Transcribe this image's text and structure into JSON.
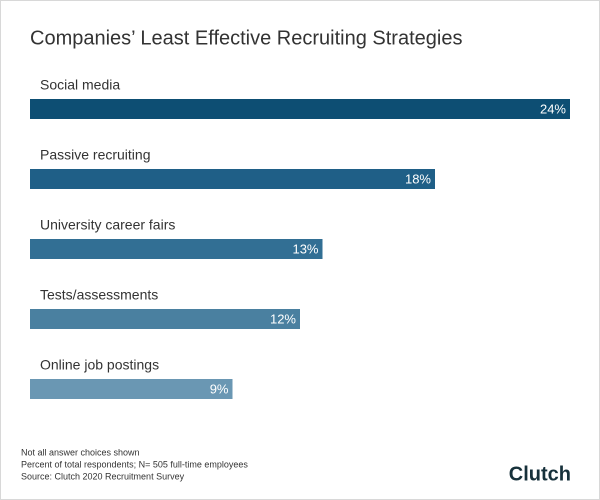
{
  "chart_data": {
    "type": "hbar",
    "title": "Companies’ Least Effective Recruiting Strategies",
    "categories": [
      "Social media",
      "Passive recruiting",
      "University career fairs",
      "Tests/assessments",
      "Online job postings"
    ],
    "values": [
      24,
      18,
      13,
      12,
      9
    ],
    "value_labels": [
      "24%",
      "18%",
      "13%",
      "12%",
      "9%"
    ],
    "colors": [
      "#0d4e73",
      "#1f5f87",
      "#326f94",
      "#4a80a0",
      "#6a97b3"
    ],
    "notes": [
      "Not all answer choices shown",
      "Percent of total respondents; N= 505 full-time employees",
      "Source: Clutch 2020 Recruitment Survey"
    ],
    "logo": "Clutch"
  }
}
